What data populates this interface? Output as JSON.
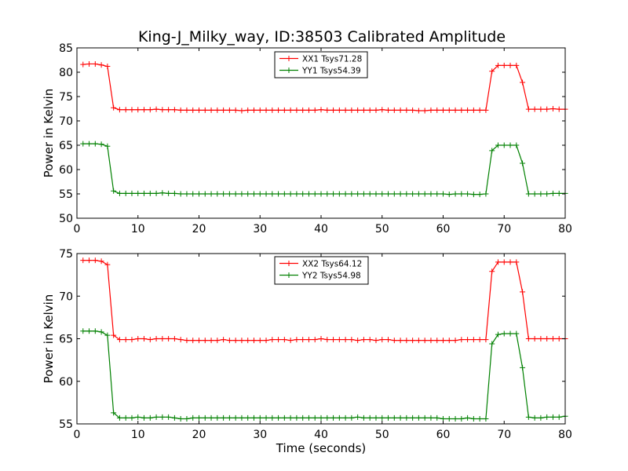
{
  "figure": {
    "title": "King-J_Milky_way, ID:38503 Calibrated Amplitude"
  },
  "chart_data": [
    {
      "type": "line",
      "title": "King-J_Milky_way, ID:38503 Calibrated Amplitude",
      "xlabel": "",
      "ylabel": "Power in Kelvin",
      "xlim": [
        0,
        80
      ],
      "ylim": [
        50,
        85
      ],
      "xticks": [
        0,
        10,
        20,
        30,
        40,
        50,
        60,
        70,
        80
      ],
      "yticks": [
        50,
        55,
        60,
        65,
        70,
        75,
        80,
        85
      ],
      "grid": false,
      "legend_position": "top-center",
      "x": [
        1,
        2,
        3,
        4,
        5,
        6,
        7,
        8,
        9,
        10,
        11,
        12,
        13,
        14,
        15,
        16,
        17,
        18,
        19,
        20,
        21,
        22,
        23,
        24,
        25,
        26,
        27,
        28,
        29,
        30,
        31,
        32,
        33,
        34,
        35,
        36,
        37,
        38,
        39,
        40,
        41,
        42,
        43,
        44,
        45,
        46,
        47,
        48,
        49,
        50,
        51,
        52,
        53,
        54,
        55,
        56,
        57,
        58,
        59,
        60,
        61,
        62,
        63,
        64,
        65,
        66,
        67,
        68,
        69,
        70,
        71,
        72,
        73,
        74,
        75,
        76,
        77,
        78,
        79,
        80
      ],
      "series": [
        {
          "name": "XX1 Tsys71.28",
          "color": "#ff0000",
          "values": [
            81.6,
            81.7,
            81.7,
            81.5,
            81.2,
            72.7,
            72.3,
            72.3,
            72.3,
            72.3,
            72.3,
            72.3,
            72.4,
            72.3,
            72.3,
            72.3,
            72.2,
            72.2,
            72.2,
            72.2,
            72.2,
            72.2,
            72.2,
            72.2,
            72.2,
            72.2,
            72.1,
            72.2,
            72.2,
            72.2,
            72.2,
            72.2,
            72.2,
            72.2,
            72.2,
            72.2,
            72.2,
            72.2,
            72.2,
            72.3,
            72.2,
            72.2,
            72.2,
            72.2,
            72.2,
            72.2,
            72.2,
            72.2,
            72.2,
            72.3,
            72.2,
            72.2,
            72.2,
            72.2,
            72.2,
            72.1,
            72.1,
            72.2,
            72.2,
            72.2,
            72.2,
            72.2,
            72.2,
            72.2,
            72.2,
            72.2,
            72.2,
            80.2,
            81.4,
            81.4,
            81.4,
            81.4,
            77.9,
            72.4,
            72.4,
            72.4,
            72.4,
            72.5,
            72.4,
            72.4
          ]
        },
        {
          "name": "YY1 Tsys54.39",
          "color": "#008000",
          "values": [
            65.3,
            65.3,
            65.3,
            65.2,
            64.8,
            55.6,
            55.1,
            55.1,
            55.1,
            55.1,
            55.1,
            55.1,
            55.1,
            55.2,
            55.1,
            55.1,
            55.0,
            55.0,
            55.0,
            55.0,
            55.0,
            55.0,
            55.0,
            55.0,
            55.0,
            55.0,
            55.0,
            55.0,
            55.0,
            55.0,
            55.0,
            55.0,
            55.0,
            55.0,
            55.0,
            55.0,
            55.0,
            55.0,
            55.0,
            55.0,
            55.0,
            55.0,
            55.0,
            55.0,
            55.0,
            55.0,
            55.0,
            55.0,
            55.0,
            55.0,
            55.0,
            55.0,
            55.0,
            55.0,
            55.0,
            55.0,
            55.0,
            55.0,
            55.0,
            55.0,
            54.9,
            55.0,
            55.0,
            55.0,
            54.9,
            54.9,
            55.0,
            63.9,
            65.0,
            65.0,
            65.0,
            65.0,
            61.3,
            55.0,
            55.0,
            55.0,
            55.0,
            55.1,
            55.1,
            55.1
          ]
        }
      ]
    },
    {
      "type": "line",
      "title": "",
      "xlabel": "Time (seconds)",
      "ylabel": "Power in Kelvin",
      "xlim": [
        0,
        80
      ],
      "ylim": [
        55,
        75
      ],
      "xticks": [
        0,
        10,
        20,
        30,
        40,
        50,
        60,
        70,
        80
      ],
      "yticks": [
        55,
        60,
        65,
        70,
        75
      ],
      "grid": false,
      "legend_position": "top-center",
      "x": [
        1,
        2,
        3,
        4,
        5,
        6,
        7,
        8,
        9,
        10,
        11,
        12,
        13,
        14,
        15,
        16,
        17,
        18,
        19,
        20,
        21,
        22,
        23,
        24,
        25,
        26,
        27,
        28,
        29,
        30,
        31,
        32,
        33,
        34,
        35,
        36,
        37,
        38,
        39,
        40,
        41,
        42,
        43,
        44,
        45,
        46,
        47,
        48,
        49,
        50,
        51,
        52,
        53,
        54,
        55,
        56,
        57,
        58,
        59,
        60,
        61,
        62,
        63,
        64,
        65,
        66,
        67,
        68,
        69,
        70,
        71,
        72,
        73,
        74,
        75,
        76,
        77,
        78,
        79,
        80
      ],
      "series": [
        {
          "name": "XX2 Tsys64.12",
          "color": "#ff0000",
          "values": [
            74.2,
            74.2,
            74.2,
            74.1,
            73.7,
            65.4,
            64.9,
            64.9,
            64.9,
            65.0,
            65.0,
            64.9,
            65.0,
            65.0,
            65.0,
            65.0,
            64.9,
            64.8,
            64.8,
            64.8,
            64.8,
            64.8,
            64.8,
            64.9,
            64.8,
            64.8,
            64.8,
            64.8,
            64.8,
            64.8,
            64.8,
            64.9,
            64.9,
            64.9,
            64.8,
            64.9,
            64.9,
            64.9,
            64.9,
            65.0,
            64.9,
            64.9,
            64.9,
            64.9,
            64.9,
            64.8,
            64.9,
            64.9,
            64.8,
            64.9,
            64.9,
            64.8,
            64.8,
            64.8,
            64.8,
            64.8,
            64.8,
            64.8,
            64.8,
            64.8,
            64.8,
            64.8,
            64.9,
            64.9,
            64.9,
            64.9,
            64.9,
            72.9,
            74.0,
            74.0,
            74.0,
            74.0,
            70.5,
            65.0,
            65.0,
            65.0,
            65.0,
            65.0,
            65.0,
            65.0
          ]
        },
        {
          "name": "YY2 Tsys54.98",
          "color": "#008000",
          "values": [
            65.9,
            65.9,
            65.9,
            65.8,
            65.4,
            56.3,
            55.7,
            55.7,
            55.7,
            55.8,
            55.7,
            55.7,
            55.8,
            55.8,
            55.8,
            55.7,
            55.6,
            55.6,
            55.7,
            55.7,
            55.7,
            55.7,
            55.7,
            55.7,
            55.7,
            55.7,
            55.7,
            55.7,
            55.7,
            55.7,
            55.7,
            55.7,
            55.7,
            55.7,
            55.7,
            55.7,
            55.7,
            55.7,
            55.7,
            55.7,
            55.7,
            55.7,
            55.7,
            55.7,
            55.7,
            55.8,
            55.7,
            55.7,
            55.7,
            55.7,
            55.7,
            55.7,
            55.7,
            55.7,
            55.7,
            55.7,
            55.7,
            55.7,
            55.7,
            55.6,
            55.6,
            55.6,
            55.6,
            55.7,
            55.6,
            55.6,
            55.6,
            64.4,
            65.5,
            65.6,
            65.6,
            65.6,
            61.6,
            55.8,
            55.7,
            55.7,
            55.8,
            55.8,
            55.8,
            55.9
          ]
        }
      ]
    }
  ]
}
